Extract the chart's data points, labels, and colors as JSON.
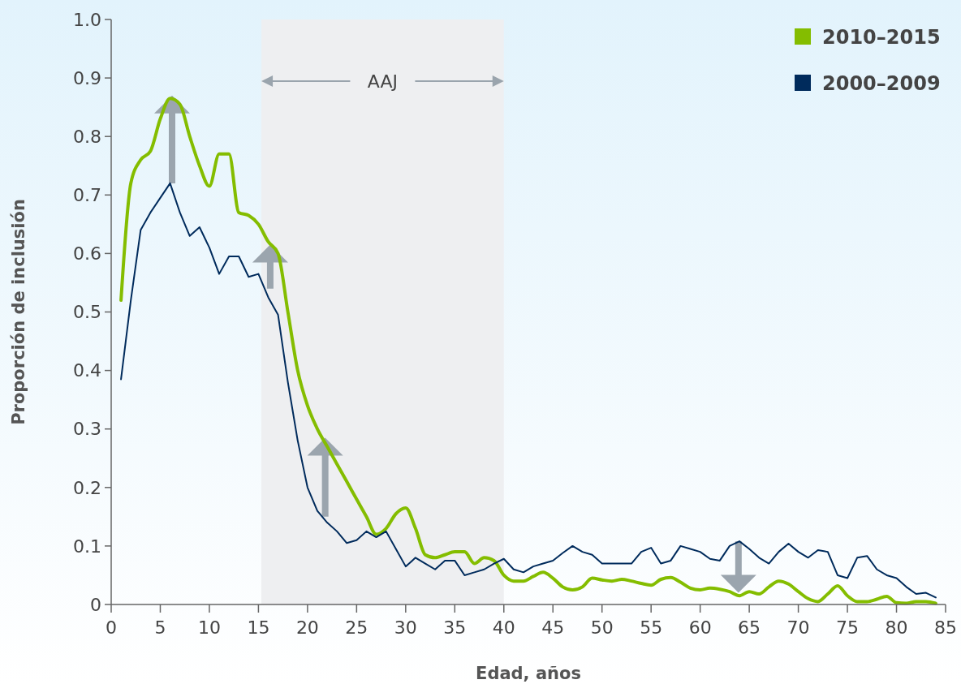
{
  "chart_data": {
    "type": "line",
    "xlabel": "Edad, años",
    "ylabel": "Proporción de inclusión",
    "x": [
      1,
      2,
      3,
      4,
      5,
      6,
      7,
      8,
      9,
      10,
      11,
      12,
      13,
      14,
      15,
      16,
      17,
      18,
      19,
      20,
      21,
      22,
      23,
      24,
      25,
      26,
      27,
      28,
      29,
      30,
      31,
      32,
      33,
      34,
      35,
      36,
      37,
      38,
      39,
      40,
      41,
      42,
      43,
      44,
      45,
      46,
      47,
      48,
      49,
      50,
      51,
      52,
      53,
      54,
      55,
      56,
      57,
      58,
      59,
      60,
      61,
      62,
      63,
      64,
      65,
      66,
      67,
      68,
      69,
      70,
      71,
      72,
      73,
      74,
      75,
      76,
      77,
      78,
      79,
      80,
      81,
      82,
      83,
      84
    ],
    "series": [
      {
        "name": "2010–2015",
        "color": "#84bd00",
        "values": [
          0.52,
          0.72,
          0.76,
          0.775,
          0.83,
          0.865,
          0.855,
          0.8,
          0.75,
          0.715,
          0.77,
          0.77,
          0.67,
          0.665,
          0.65,
          0.62,
          0.6,
          0.5,
          0.4,
          0.34,
          0.3,
          0.27,
          0.24,
          0.21,
          0.18,
          0.15,
          0.12,
          0.13,
          0.155,
          0.165,
          0.13,
          0.085,
          0.08,
          0.085,
          0.09,
          0.09,
          0.07,
          0.08,
          0.075,
          0.05,
          0.04,
          0.04,
          0.048,
          0.055,
          0.045,
          0.03,
          0.025,
          0.03,
          0.045,
          0.042,
          0.04,
          0.043,
          0.04,
          0.036,
          0.033,
          0.043,
          0.046,
          0.038,
          0.028,
          0.025,
          0.028,
          0.026,
          0.022,
          0.015,
          0.022,
          0.018,
          0.03,
          0.04,
          0.035,
          0.022,
          0.01,
          0.005,
          0.018,
          0.032,
          0.015,
          0.005,
          0.005,
          0.009,
          0.014,
          0.003,
          0.002,
          0.005,
          0.005,
          0.002
        ]
      },
      {
        "name": "2000–2009",
        "color": "#002b5c",
        "values": [
          0.385,
          0.52,
          0.64,
          0.67,
          0.695,
          0.72,
          0.67,
          0.63,
          0.645,
          0.61,
          0.565,
          0.595,
          0.595,
          0.56,
          0.565,
          0.525,
          0.495,
          0.38,
          0.28,
          0.2,
          0.16,
          0.14,
          0.125,
          0.105,
          0.11,
          0.125,
          0.115,
          0.125,
          0.095,
          0.065,
          0.08,
          0.07,
          0.06,
          0.075,
          0.075,
          0.05,
          0.055,
          0.06,
          0.07,
          0.078,
          0.06,
          0.055,
          0.065,
          0.07,
          0.075,
          0.088,
          0.1,
          0.09,
          0.085,
          0.07,
          0.07,
          0.07,
          0.07,
          0.09,
          0.097,
          0.07,
          0.075,
          0.1,
          0.095,
          0.09,
          0.078,
          0.075,
          0.1,
          0.108,
          0.095,
          0.08,
          0.07,
          0.09,
          0.104,
          0.09,
          0.08,
          0.093,
          0.09,
          0.05,
          0.045,
          0.08,
          0.083,
          0.06,
          0.05,
          0.045,
          0.03,
          0.018,
          0.02,
          0.012
        ]
      }
    ],
    "xlim": [
      0,
      85
    ],
    "xticks": [
      0,
      5,
      10,
      15,
      20,
      25,
      30,
      35,
      40,
      45,
      50,
      55,
      60,
      65,
      70,
      75,
      80,
      85
    ],
    "ylim": [
      0,
      1
    ],
    "yticks": [
      0,
      0.1,
      0.2,
      0.3,
      0.4,
      0.5,
      0.6,
      0.7,
      0.8,
      0.9,
      {
        "value": 1,
        "label": "1.0"
      }
    ],
    "bands": [
      {
        "axis": "x",
        "from": 15.3,
        "to": 40,
        "label": "AAJ",
        "color": "#eeeff1"
      }
    ],
    "legend": "top right",
    "grid": false,
    "marker": "none",
    "line_style": "solid"
  }
}
